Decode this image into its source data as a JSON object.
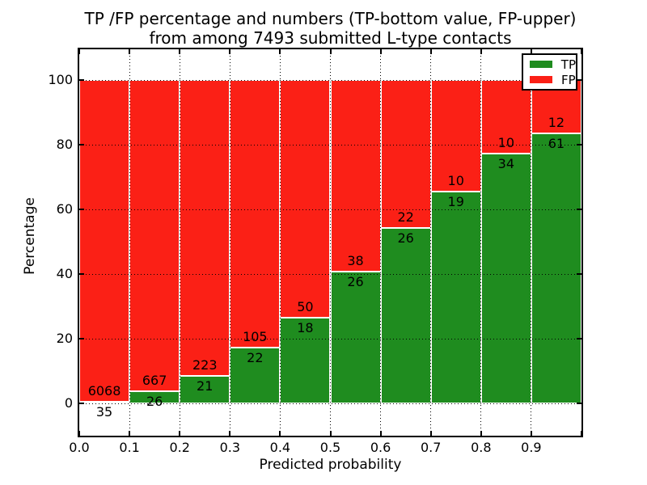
{
  "figure": {
    "background": "#ffffff"
  },
  "chart_data": {
    "type": "bar",
    "stacked": true,
    "orientation": "vertical",
    "title_lines": [
      "TP /FP percentage and numbers (TP-bottom value, FP-upper)",
      "from among 7493 submitted L-type contacts"
    ],
    "xlabel": "Predicted probability",
    "ylabel": "Percentage",
    "total_submitted": 7493,
    "categories": [
      "0.0-0.1",
      "0.1-0.2",
      "0.2-0.3",
      "0.3-0.4",
      "0.4-0.5",
      "0.5-0.6",
      "0.6-0.7",
      "0.7-0.8",
      "0.8-0.9",
      "0.9-1.0"
    ],
    "x_ticks": [
      "0.0",
      "0.1",
      "0.2",
      "0.3",
      "0.4",
      "0.5",
      "0.6",
      "0.7",
      "0.8",
      "0.9"
    ],
    "y_ticks": [
      0,
      20,
      40,
      60,
      80,
      100
    ],
    "xlim": [
      0.0,
      1.0
    ],
    "ylim": [
      -10,
      110
    ],
    "grid": "dotted",
    "bar_edge_color": "#ffffff",
    "legend_position": "upper right",
    "series": [
      {
        "name": "TP",
        "color": "#1f8c1f",
        "counts": [
          35,
          26,
          21,
          22,
          18,
          26,
          26,
          19,
          34,
          61
        ],
        "pct": [
          0.57,
          3.75,
          8.61,
          17.32,
          26.47,
          40.63,
          54.17,
          65.52,
          77.27,
          83.56
        ]
      },
      {
        "name": "FP",
        "color": "#fb2016",
        "counts": [
          6068,
          667,
          223,
          105,
          50,
          38,
          22,
          10,
          10,
          12
        ],
        "pct": [
          99.43,
          96.25,
          91.39,
          82.68,
          73.53,
          59.37,
          45.83,
          34.48,
          22.73,
          16.44
        ]
      }
    ]
  }
}
